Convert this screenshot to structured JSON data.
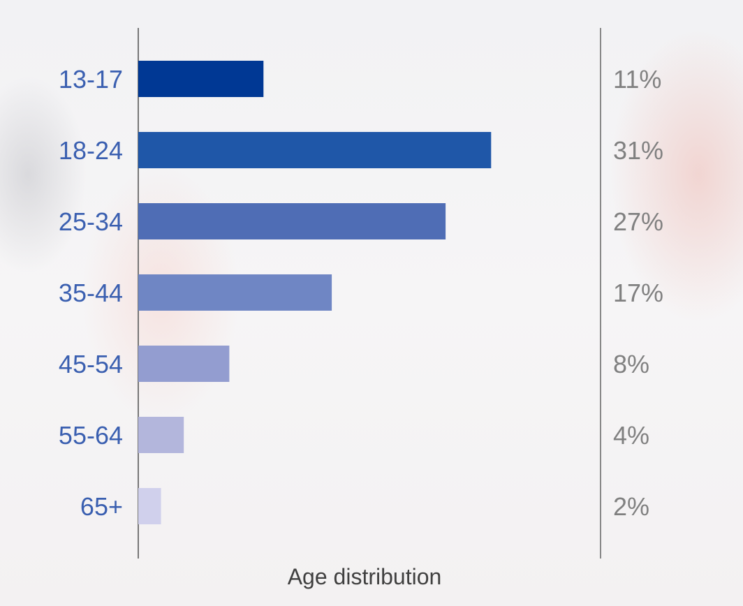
{
  "chart_data": {
    "type": "bar",
    "orientation": "horizontal",
    "title": "",
    "xlabel": "Age distribution",
    "ylabel": "",
    "categories": [
      "13-17",
      "18-24",
      "25-34",
      "35-44",
      "45-54",
      "55-64",
      "65+"
    ],
    "values": [
      11,
      31,
      27,
      17,
      8,
      4,
      2
    ],
    "value_labels": [
      "11%",
      "31%",
      "27%",
      "17%",
      "8%",
      "4%",
      "2%"
    ],
    "colors": [
      "#003894",
      "#1f57a8",
      "#4f6db5",
      "#6f86c4",
      "#939dd0",
      "#b3b6dc",
      "#d0d0ec"
    ],
    "unit": "%",
    "grid": false
  }
}
